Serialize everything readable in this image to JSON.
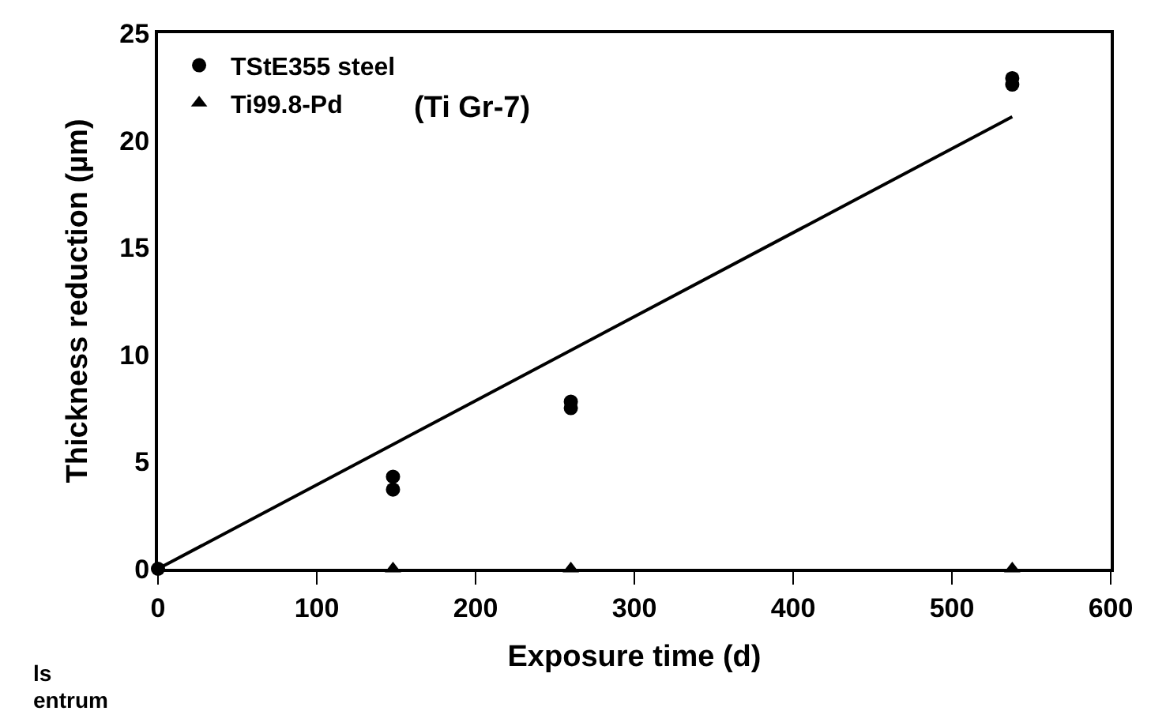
{
  "chart_data": {
    "type": "scatter",
    "xlabel": "Exposure time (d)",
    "ylabel": "Thickness reduction (µm)",
    "xlim": [
      0,
      600
    ],
    "xticks": [
      0,
      100,
      200,
      300,
      400,
      500,
      600
    ],
    "ylim": [
      0,
      25
    ],
    "yticks": [
      0,
      5,
      10,
      15,
      20,
      25
    ],
    "grid": false,
    "legend": "top left",
    "series": [
      {
        "name": "TStE355 steel",
        "color": "#000000",
        "marker": "circle",
        "x": [
          0,
          148,
          148,
          260,
          260,
          538,
          538
        ],
        "values": [
          0,
          4.3,
          3.7,
          7.8,
          7.5,
          22.9,
          22.6
        ]
      },
      {
        "name": "Ti99.8-Pd",
        "color": "#000000",
        "marker": "triangle",
        "x": [
          148,
          260,
          538
        ],
        "values": [
          0,
          0,
          0
        ]
      },
      {
        "type": "line",
        "color": "#000000",
        "line_style": "solid",
        "marker": "none",
        "x": [
          0,
          538
        ],
        "values": [
          0,
          21.1
        ]
      }
    ],
    "annotations": [
      "(Ti Gr-7)",
      "ls",
      "entrum"
    ]
  }
}
